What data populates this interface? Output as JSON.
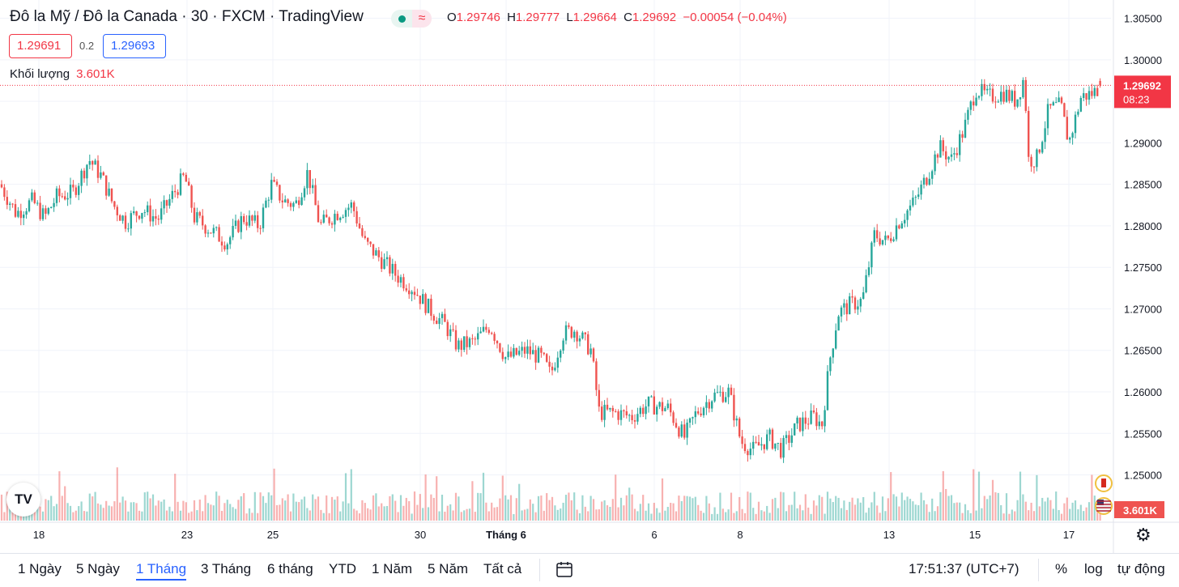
{
  "header": {
    "title": "Đô la Mỹ / Đô la Canada · 30 · FXCM · TradingView",
    "status_icon": "market-open-dot",
    "ohlc": {
      "o_label": "O",
      "o": "1.29746",
      "h_label": "H",
      "h": "1.29777",
      "l_label": "L",
      "l": "1.29664",
      "c_label": "C",
      "c": "1.29692",
      "change": "−0.00054 (−0.04%)"
    },
    "sell_price": "1.29691",
    "spread": "0.2",
    "buy_price": "1.29693",
    "volume_label": "Khối lượng",
    "volume_value": "3.601K"
  },
  "colors": {
    "up": "#26a69a",
    "down": "#ef5350",
    "accent": "#2962ff",
    "last_price": "#f23645"
  },
  "chart_data": {
    "type": "candlestick",
    "symbol": "USD/CAD",
    "interval": "30",
    "y_ticks": [
      1.25,
      1.255,
      1.26,
      1.265,
      1.27,
      1.275,
      1.28,
      1.285,
      1.29,
      1.295,
      1.3,
      1.305
    ],
    "y_tick_labels": [
      "1.25000",
      "1.25500",
      "1.26000",
      "1.26500",
      "1.27000",
      "1.27500",
      "1.28000",
      "1.28500",
      "1.29000",
      "1.29500",
      "1.30000",
      "1.30500"
    ],
    "ylim": [
      1.2443,
      1.3072
    ],
    "x_tick_labels": [
      "18",
      "23",
      "25",
      "30",
      "Tháng 6",
      "6",
      "8",
      "13",
      "15",
      "17"
    ],
    "last_price": "1.29692",
    "countdown": "08:23",
    "volume_last": "3.601K",
    "close_path": [
      [
        0,
        1.285
      ],
      [
        20,
        1.2815
      ],
      [
        40,
        1.283
      ],
      [
        55,
        1.281
      ],
      [
        70,
        1.2835
      ],
      [
        90,
        1.284
      ],
      [
        110,
        1.288
      ],
      [
        125,
        1.286
      ],
      [
        140,
        1.2825
      ],
      [
        155,
        1.2805
      ],
      [
        175,
        1.282
      ],
      [
        195,
        1.2808
      ],
      [
        215,
        1.284
      ],
      [
        228,
        1.286
      ],
      [
        240,
        1.281
      ],
      [
        260,
        1.2795
      ],
      [
        280,
        1.278
      ],
      [
        300,
        1.281
      ],
      [
        320,
        1.28
      ],
      [
        335,
        1.285
      ],
      [
        350,
        1.283
      ],
      [
        365,
        1.2825
      ],
      [
        380,
        1.2865
      ],
      [
        395,
        1.28
      ],
      [
        415,
        1.2815
      ],
      [
        435,
        1.2825
      ],
      [
        450,
        1.278
      ],
      [
        470,
        1.276
      ],
      [
        490,
        1.274
      ],
      [
        510,
        1.2725
      ],
      [
        530,
        1.27
      ],
      [
        550,
        1.268
      ],
      [
        565,
        1.2655
      ],
      [
        585,
        1.266
      ],
      [
        605,
        1.268
      ],
      [
        625,
        1.264
      ],
      [
        650,
        1.265
      ],
      [
        670,
        1.264
      ],
      [
        680,
        1.262
      ],
      [
        695,
        1.267
      ],
      [
        710,
        1.2675
      ],
      [
        730,
        1.265
      ],
      [
        740,
        1.2575
      ],
      [
        760,
        1.2575
      ],
      [
        780,
        1.257
      ],
      [
        800,
        1.2585
      ],
      [
        825,
        1.258
      ],
      [
        845,
        1.2545
      ],
      [
        860,
        1.2575
      ],
      [
        880,
        1.2595
      ],
      [
        900,
        1.26
      ],
      [
        915,
        1.254
      ],
      [
        930,
        1.253
      ],
      [
        950,
        1.2545
      ],
      [
        965,
        1.253
      ],
      [
        985,
        1.256
      ],
      [
        1005,
        1.257
      ],
      [
        1015,
        1.256
      ],
      [
        1025,
        1.264
      ],
      [
        1035,
        1.2695
      ],
      [
        1050,
        1.2705
      ],
      [
        1065,
        1.271
      ],
      [
        1080,
        1.279
      ],
      [
        1095,
        1.278
      ],
      [
        1110,
        1.2805
      ],
      [
        1130,
        1.283
      ],
      [
        1145,
        1.286
      ],
      [
        1160,
        1.2895
      ],
      [
        1175,
        1.288
      ],
      [
        1190,
        1.2915
      ],
      [
        1205,
        1.2965
      ],
      [
        1220,
        1.2955
      ],
      [
        1240,
        1.296
      ],
      [
        1255,
        1.295
      ],
      [
        1265,
        1.298
      ],
      [
        1270,
        1.288
      ],
      [
        1280,
        1.288
      ],
      [
        1295,
        1.294
      ],
      [
        1310,
        1.2945
      ],
      [
        1320,
        1.29
      ],
      [
        1335,
        1.2955
      ],
      [
        1350,
        1.296
      ],
      [
        1360,
        1.2969
      ]
    ]
  },
  "bottom_bar": {
    "ranges": [
      "1 Ngày",
      "5 Ngày",
      "1 Tháng",
      "3 Tháng",
      "6 tháng",
      "YTD",
      "1 Năm",
      "5 Năm",
      "Tất cả"
    ],
    "active_range": "1 Tháng",
    "compare_icon": "date-range-icon",
    "time": "17:51:37 (UTC+7)",
    "percent": "%",
    "log": "log",
    "auto": "tự động"
  },
  "logo_text": "TV"
}
